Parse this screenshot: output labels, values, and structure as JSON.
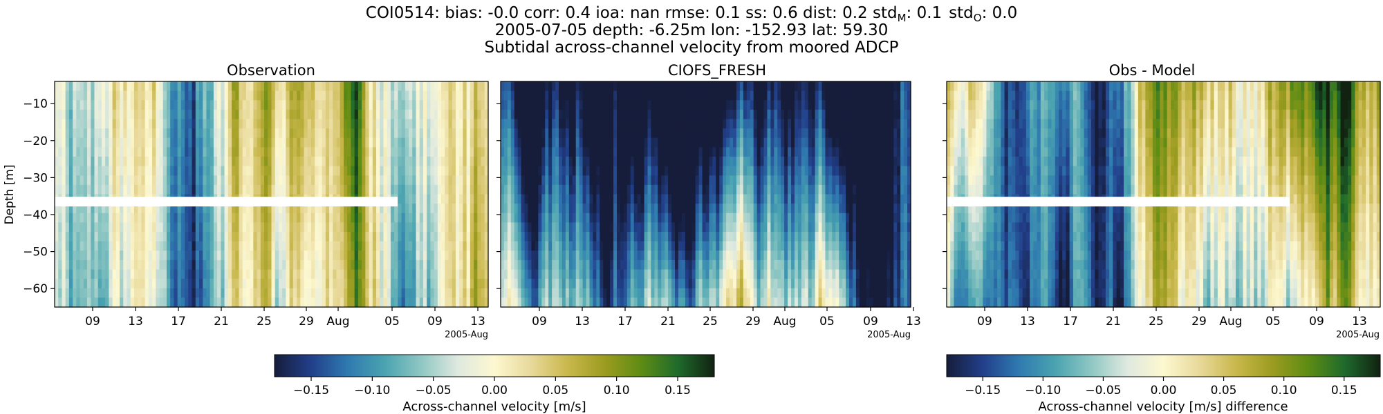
{
  "figure": {
    "title_lines": [
      "COI0514: bias: -0.0  corr: 0.4  ioa: nan  rmse: 0.1  ss: 0.6  dist: 0.2  std",
      "2005-07-05 depth: -6.25m lon: -152.93 lat: 59.30",
      "Subtidal across-channel velocity from moored ADCP"
    ],
    "title_stats": {
      "std_m_label": "std",
      "std_m_sub": "M",
      "std_m_value": ": 0.1",
      "std_o_label": "std",
      "std_o_sub": "O",
      "std_o_value": ": 0.0"
    }
  },
  "colors": {
    "cmap_stops": [
      "#161d3b",
      "#223f8a",
      "#2f7ab0",
      "#4aa3b0",
      "#8fc7c3",
      "#dfe9df",
      "#fdf8d0",
      "#e8d99a",
      "#c9b84c",
      "#9c9c20",
      "#5e8c14",
      "#1f6b2c",
      "#112211"
    ],
    "gap": "#ffffff"
  },
  "chart_data": [
    {
      "type": "heatmap",
      "title": "Observation",
      "ylabel": "Depth [m]",
      "ylim": [
        -65,
        -4
      ],
      "yticks": [
        -10,
        -20,
        -30,
        -40,
        -50,
        -60
      ],
      "x_range": [
        "2005-07-06",
        "2005-08-14"
      ],
      "xtick_labels": [
        "09",
        "13",
        "17",
        "21",
        "25",
        "29",
        "Aug",
        "05",
        "09",
        "13"
      ],
      "x_offset_label": "2005-Aug",
      "data_gap": {
        "depth": -36.5,
        "until": "2005-08-06"
      },
      "seed": 11
    },
    {
      "type": "heatmap",
      "title": "CIOFS_FRESH",
      "ylim": [
        -65,
        -4
      ],
      "yticks": [
        -10,
        -20,
        -30,
        -40,
        -50,
        -60
      ],
      "x_range": [
        "2005-07-06",
        "2005-08-14"
      ],
      "xtick_labels": [
        "09",
        "13",
        "17",
        "21",
        "25",
        "29",
        "Aug",
        "05",
        "09",
        "13"
      ],
      "x_offset_label": "2005-Aug",
      "seed": 23
    },
    {
      "type": "heatmap",
      "title": "Obs - Model",
      "ylim": [
        -65,
        -4
      ],
      "yticks": [
        -10,
        -20,
        -30,
        -40,
        -50,
        -60
      ],
      "x_range": [
        "2005-07-06",
        "2005-08-14"
      ],
      "xtick_labels": [
        "09",
        "13",
        "17",
        "21",
        "25",
        "29",
        "Aug",
        "05",
        "09",
        "13"
      ],
      "x_offset_label": "2005-Aug",
      "data_gap": {
        "depth": -36.5,
        "until": "2005-08-06"
      },
      "seed": 37
    }
  ],
  "colorbars": [
    {
      "label": "Across-channel velocity [m/s]",
      "range": [
        -0.18,
        0.18
      ],
      "ticks": [
        "−0.15",
        "−0.10",
        "−0.05",
        "0.00",
        "0.05",
        "0.10",
        "0.15"
      ],
      "tick_values": [
        -0.15,
        -0.1,
        -0.05,
        0.0,
        0.05,
        0.1,
        0.15
      ]
    },
    {
      "label": "Across-channel velocity [m/s] difference",
      "range": [
        -0.18,
        0.18
      ],
      "ticks": [
        "−0.15",
        "−0.10",
        "−0.05",
        "0.00",
        "0.05",
        "0.10",
        "0.15"
      ],
      "tick_values": [
        -0.15,
        -0.1,
        -0.05,
        0.0,
        0.05,
        0.1,
        0.15
      ]
    }
  ]
}
